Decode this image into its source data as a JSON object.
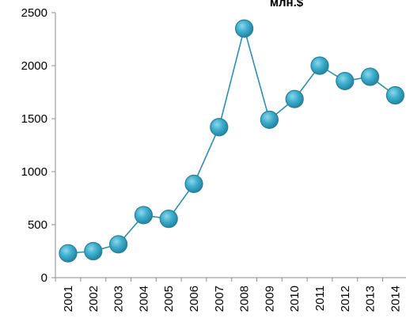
{
  "chart_data": {
    "type": "line",
    "title": "млн.$",
    "xlabel": "",
    "ylabel": "",
    "categories": [
      "2001",
      "2002",
      "2003",
      "2004",
      "2005",
      "2006",
      "2007",
      "2008",
      "2009",
      "2010",
      "2011",
      "2012",
      "2013",
      "2014"
    ],
    "series": [
      {
        "values": [
          230,
          250,
          315,
          590,
          555,
          885,
          1420,
          2350,
          1490,
          1685,
          2000,
          1855,
          1895,
          1720
        ]
      }
    ],
    "ylim": [
      0,
      2500
    ],
    "yticks": [
      0,
      500,
      1000,
      1500,
      2000,
      2500
    ],
    "grid": false,
    "legend": "none",
    "colors": {
      "line": "#2e8eab",
      "marker_fill": "#3ca9c9",
      "marker_stroke": "#2a7f99",
      "axis": "#8c8c8c"
    }
  }
}
